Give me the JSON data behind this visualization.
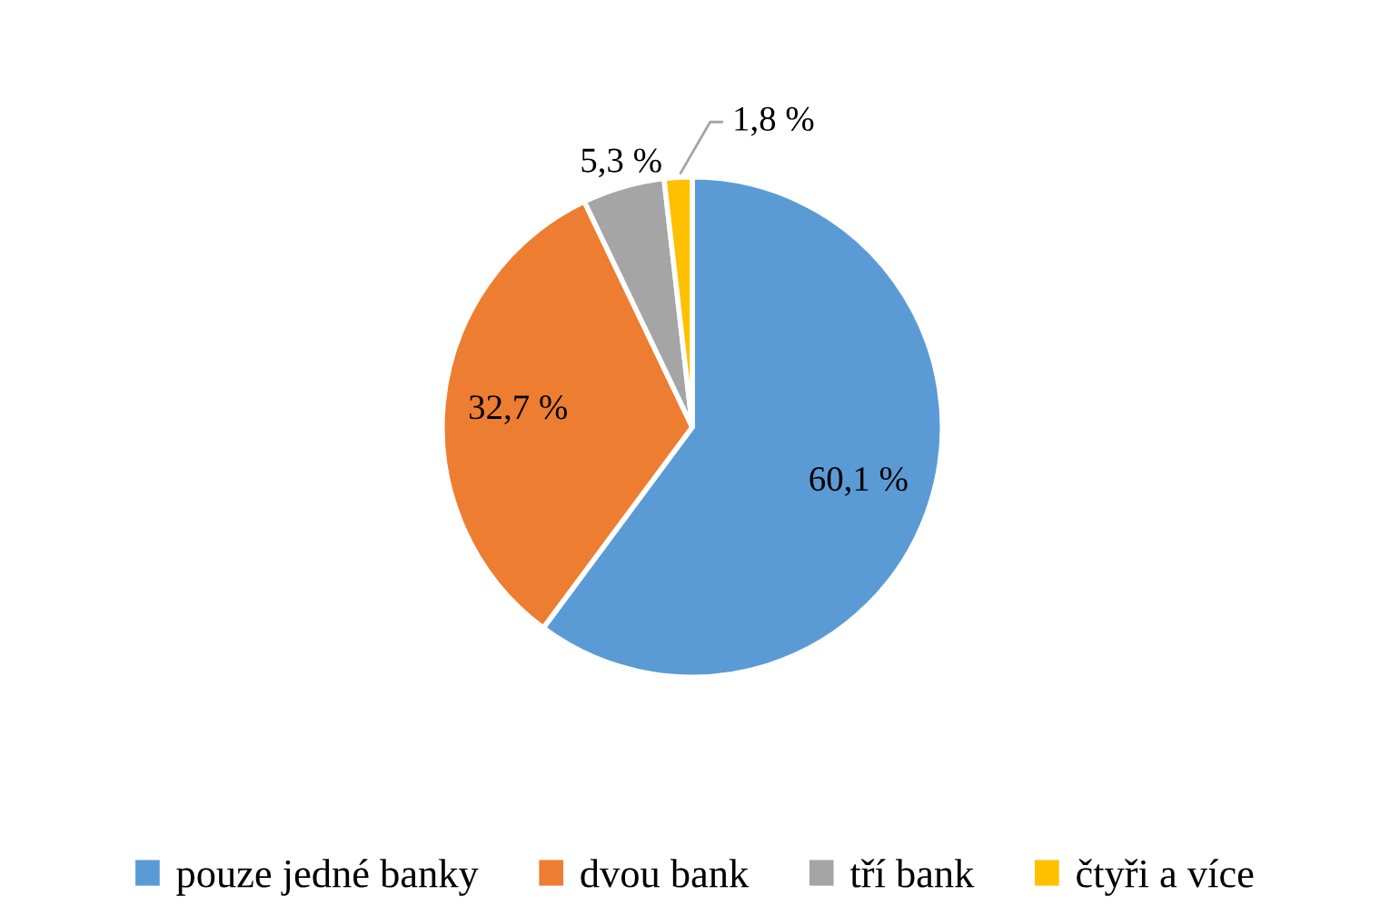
{
  "chart_data": {
    "type": "pie",
    "categories": [
      "pouze jedné banky",
      "dvou bank",
      "tří bank",
      "čtyři a více"
    ],
    "values": [
      60.1,
      32.7,
      5.3,
      1.8
    ],
    "colors": [
      "#5b9bd5",
      "#ed7d31",
      "#a5a5a5",
      "#ffc000"
    ],
    "value_labels": [
      "60,1 %",
      "32,7 %",
      "5,3 %",
      "1,8 %"
    ],
    "legend": "bottom"
  }
}
